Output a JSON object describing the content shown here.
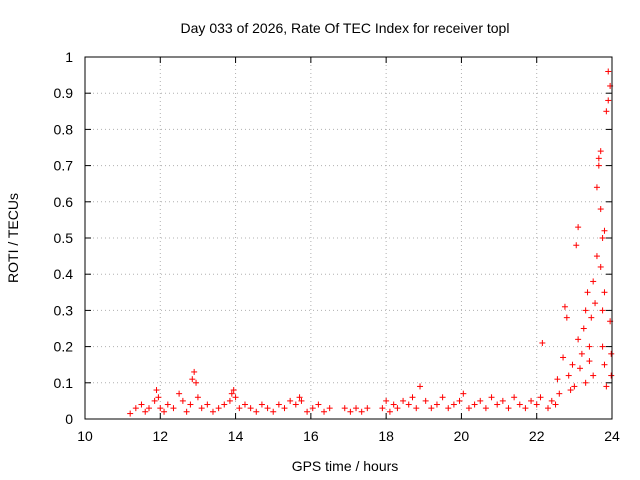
{
  "chart_data": {
    "type": "scatter",
    "title": "Day 033 of 2026, Rate Of TEC Index for receiver topl",
    "xlabel": "GPS time / hours",
    "ylabel": "ROTI / TECUs",
    "xlim": [
      10,
      24
    ],
    "ylim": [
      0,
      1
    ],
    "xticks": [
      "10",
      "12",
      "14",
      "16",
      "18",
      "20",
      "22",
      "24"
    ],
    "yticks": [
      "0",
      "0.1",
      "0.2",
      "0.3",
      "0.4",
      "0.5",
      "0.6",
      "0.7",
      "0.8",
      "0.9",
      "1"
    ],
    "grid": true,
    "marker": "+",
    "color": "#ff0000",
    "series": [
      {
        "x": [
          11.2,
          11.35,
          11.5,
          11.6,
          11.7,
          11.85,
          11.9,
          11.95,
          12.0,
          12.1,
          12.2,
          12.35,
          12.5,
          12.6,
          12.7,
          12.8,
          12.85,
          12.9,
          12.95,
          13.0,
          13.1,
          13.25,
          13.4,
          13.55,
          13.7,
          13.85,
          13.9,
          13.95,
          14.0,
          14.1,
          14.25,
          14.4,
          14.55,
          14.7,
          14.85,
          15.0,
          15.15,
          15.3,
          15.45,
          15.6,
          15.7,
          15.75,
          15.9,
          16.05,
          16.2,
          16.35,
          16.5,
          16.9,
          17.05,
          17.2,
          17.35,
          17.5,
          17.9,
          18.0,
          18.1,
          18.2,
          18.3,
          18.45,
          18.6,
          18.7,
          18.8,
          18.9,
          19.05,
          19.2,
          19.35,
          19.5,
          19.65,
          19.8,
          19.95,
          20.05,
          20.2,
          20.35,
          20.5,
          20.65,
          20.8,
          20.95,
          21.1,
          21.25,
          21.4,
          21.55,
          21.7,
          21.85,
          22.0,
          22.1,
          22.15,
          22.3,
          22.4,
          22.5,
          22.55,
          22.6,
          22.7,
          22.75,
          22.8,
          22.85,
          22.9,
          22.95,
          23.0,
          23.05,
          23.1,
          23.1,
          23.15,
          23.2,
          23.25,
          23.3,
          23.3,
          23.35,
          23.4,
          23.4,
          23.45,
          23.5,
          23.5,
          23.55,
          23.6,
          23.6,
          23.65,
          23.65,
          23.7,
          23.7,
          23.7,
          23.75,
          23.75,
          23.75,
          23.8,
          23.8,
          23.8,
          23.85,
          23.85,
          23.9,
          23.9,
          23.95,
          23.95,
          23.98,
          23.98
        ],
        "y": [
          0.015,
          0.03,
          0.04,
          0.02,
          0.03,
          0.05,
          0.08,
          0.06,
          0.03,
          0.02,
          0.04,
          0.03,
          0.07,
          0.05,
          0.02,
          0.04,
          0.11,
          0.13,
          0.1,
          0.06,
          0.03,
          0.04,
          0.02,
          0.03,
          0.04,
          0.05,
          0.07,
          0.08,
          0.06,
          0.03,
          0.04,
          0.03,
          0.02,
          0.04,
          0.03,
          0.02,
          0.04,
          0.03,
          0.05,
          0.04,
          0.06,
          0.05,
          0.02,
          0.03,
          0.04,
          0.02,
          0.03,
          0.03,
          0.02,
          0.03,
          0.02,
          0.03,
          0.03,
          0.05,
          0.02,
          0.04,
          0.03,
          0.05,
          0.04,
          0.06,
          0.03,
          0.09,
          0.05,
          0.03,
          0.04,
          0.06,
          0.03,
          0.04,
          0.05,
          0.07,
          0.03,
          0.04,
          0.05,
          0.03,
          0.06,
          0.04,
          0.05,
          0.03,
          0.06,
          0.04,
          0.03,
          0.05,
          0.04,
          0.06,
          0.21,
          0.03,
          0.05,
          0.04,
          0.11,
          0.07,
          0.17,
          0.31,
          0.28,
          0.12,
          0.08,
          0.15,
          0.09,
          0.48,
          0.53,
          0.22,
          0.14,
          0.18,
          0.25,
          0.3,
          0.1,
          0.35,
          0.2,
          0.16,
          0.28,
          0.38,
          0.12,
          0.32,
          0.45,
          0.64,
          0.7,
          0.72,
          0.42,
          0.58,
          0.74,
          0.5,
          0.3,
          0.2,
          0.15,
          0.35,
          0.52,
          0.85,
          0.09,
          0.88,
          0.96,
          0.92,
          0.27,
          0.18,
          0.12
        ]
      }
    ]
  }
}
